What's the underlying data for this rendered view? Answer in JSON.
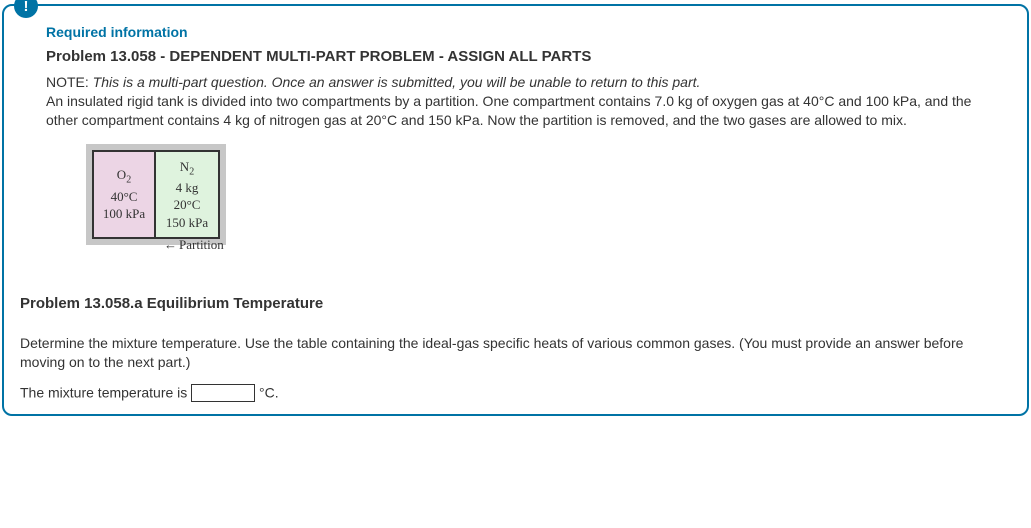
{
  "badge": "!",
  "header": {
    "required": "Required information",
    "title": "Problem 13.058 - DEPENDENT MULTI-PART PROBLEM - ASSIGN ALL PARTS",
    "note_label": "NOTE: ",
    "note_italic": "This is a multi-part question. Once an answer is submitted, you will be unable to return to this part.",
    "body": "An insulated rigid tank is divided into two compartments by a partition. One compartment contains 7.0 kg of oxygen gas at 40°C and 100 kPa, and the other compartment contains 4 kg of nitrogen gas at 20°C and 150 kPa. Now the partition is removed, and the two gases are allowed to mix."
  },
  "diagram": {
    "left": {
      "gas": "O",
      "sub": "2",
      "mass": "",
      "temp": "40°C",
      "pressure": "100 kPa",
      "bgcolor": "#ecd5e5"
    },
    "right": {
      "gas": "N",
      "sub": "2",
      "mass": "4 kg",
      "temp": "20°C",
      "pressure": "150 kPa",
      "bgcolor": "#dff3de"
    },
    "partition_label": "Partition",
    "arrow": "←"
  },
  "question": {
    "subtitle": "Problem 13.058.a Equilibrium Temperature",
    "instruction": "Determine the mixture temperature. Use the table containing the ideal-gas specific heats of various common gases. (You must provide an answer before moving on to the next part.)",
    "answer_prefix": "The mixture temperature is ",
    "answer_value": "",
    "answer_unit": " °C."
  }
}
